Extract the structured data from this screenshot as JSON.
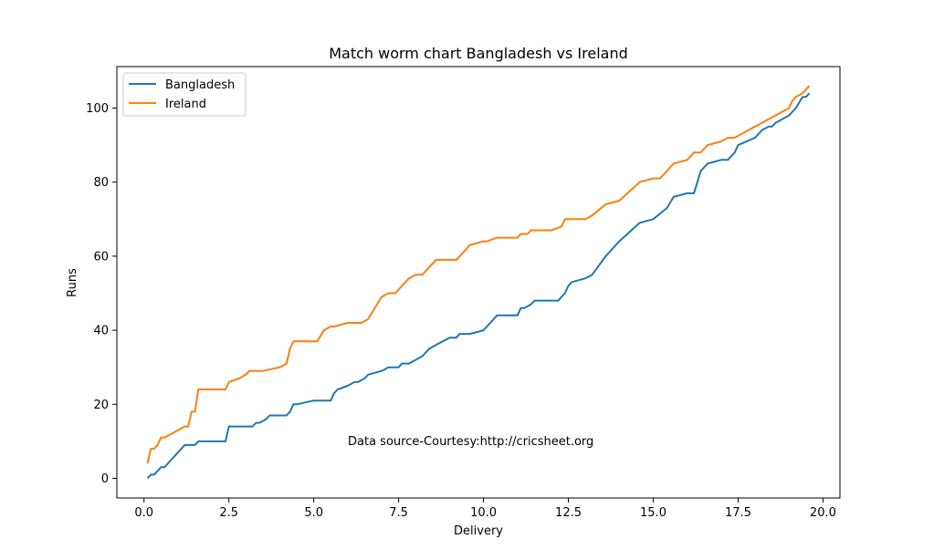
{
  "chart_data": {
    "type": "line",
    "title": "Match worm chart Bangladesh vs Ireland",
    "xlabel": "Delivery",
    "ylabel": "Runs",
    "xlim": [
      -0.8,
      20.5
    ],
    "ylim": [
      -5.3,
      111.2
    ],
    "xticks": [
      0.0,
      2.5,
      5.0,
      7.5,
      10.0,
      12.5,
      15.0,
      17.5,
      20.0
    ],
    "xtick_labels": [
      "0.0",
      "2.5",
      "5.0",
      "7.5",
      "10.0",
      "12.5",
      "15.0",
      "17.5",
      "20.0"
    ],
    "yticks": [
      0,
      20,
      40,
      60,
      80,
      100
    ],
    "ytick_labels": [
      "0",
      "20",
      "40",
      "60",
      "80",
      "100"
    ],
    "grid": false,
    "legend": "top-left",
    "annotation": "Data source-Courtesy:http://cricsheet.org",
    "series": [
      {
        "name": "Bangladesh",
        "color": "#1f77b4",
        "x": [
          0.1,
          0.2,
          0.3,
          0.5,
          0.6,
          0.8,
          1.0,
          1.2,
          1.5,
          1.6,
          2.0,
          2.4,
          2.5,
          3.2,
          3.3,
          3.4,
          3.6,
          3.7,
          4.1,
          4.2,
          4.3,
          4.4,
          4.5,
          5.0,
          5.5,
          5.6,
          5.7,
          6.0,
          6.2,
          6.3,
          6.5,
          6.6,
          7.0,
          7.2,
          7.5,
          7.6,
          7.8,
          8.0,
          8.2,
          8.4,
          8.6,
          9.0,
          9.2,
          9.3,
          9.6,
          10.0,
          10.1,
          10.3,
          10.4,
          11.0,
          11.1,
          11.2,
          11.4,
          11.5,
          11.6,
          12.0,
          12.2,
          12.3,
          12.4,
          12.5,
          12.6,
          13.0,
          13.2,
          13.6,
          14.0,
          14.6,
          15.0,
          15.4,
          15.6,
          16.0,
          16.2,
          16.3,
          16.4,
          16.6,
          17.0,
          17.2,
          17.4,
          17.5,
          18.0,
          18.2,
          18.4,
          18.5,
          18.6,
          19.0,
          19.2,
          19.4,
          19.5,
          19.6
        ],
        "y": [
          0,
          1,
          1,
          3,
          3,
          5,
          7,
          9,
          9,
          10,
          10,
          10,
          14,
          14,
          15,
          15,
          16,
          17,
          17,
          17,
          18,
          20,
          20,
          21,
          21,
          23,
          24,
          25,
          26,
          26,
          27,
          28,
          29,
          30,
          30,
          31,
          31,
          32,
          33,
          35,
          36,
          38,
          38,
          39,
          39,
          40,
          41,
          43,
          44,
          44,
          46,
          46,
          47,
          48,
          48,
          48,
          48,
          49,
          50,
          52,
          53,
          54,
          55,
          60,
          64,
          69,
          70,
          73,
          76,
          77,
          77,
          80,
          83,
          85,
          86,
          86,
          88,
          90,
          92,
          94,
          95,
          95,
          96,
          98,
          100,
          103,
          103,
          104
        ]
      },
      {
        "name": "Ireland",
        "color": "#ff7f0e",
        "x": [
          0.1,
          0.2,
          0.3,
          0.4,
          0.5,
          0.6,
          0.8,
          1.0,
          1.2,
          1.3,
          1.4,
          1.5,
          1.6,
          2.4,
          2.5,
          2.8,
          3.0,
          3.1,
          3.5,
          4.0,
          4.2,
          4.3,
          4.4,
          4.5,
          5.0,
          5.1,
          5.3,
          5.5,
          5.6,
          6.0,
          6.2,
          6.3,
          6.4,
          6.6,
          7.0,
          7.2,
          7.4,
          7.6,
          7.8,
          8.0,
          8.2,
          8.4,
          8.6,
          9.0,
          9.2,
          9.3,
          9.5,
          9.6,
          10.0,
          10.1,
          10.4,
          11.0,
          11.1,
          11.3,
          11.4,
          11.6,
          12.0,
          12.3,
          12.4,
          12.5,
          13.0,
          13.2,
          13.6,
          14.0,
          14.6,
          15.0,
          15.2,
          15.4,
          15.6,
          16.0,
          16.2,
          16.4,
          16.6,
          17.0,
          17.2,
          17.4,
          17.6,
          18.0,
          18.2,
          18.4,
          18.6,
          19.0,
          19.1,
          19.2,
          19.4,
          19.6
        ],
        "y": [
          4,
          8,
          8,
          9,
          11,
          11,
          12,
          13,
          14,
          14,
          18,
          18,
          24,
          24,
          26,
          27,
          28,
          29,
          29,
          30,
          31,
          35,
          37,
          37,
          37,
          37,
          40,
          41,
          41,
          42,
          42,
          42,
          42,
          43,
          49,
          50,
          50,
          52,
          54,
          55,
          55,
          57,
          59,
          59,
          59,
          60,
          62,
          63,
          64,
          64,
          65,
          65,
          66,
          66,
          67,
          67,
          67,
          68,
          70,
          70,
          70,
          71,
          74,
          75,
          80,
          81,
          81,
          83,
          85,
          86,
          88,
          88,
          90,
          91,
          92,
          92,
          93,
          95,
          96,
          97,
          98,
          100,
          102,
          103,
          104,
          106
        ]
      }
    ]
  }
}
